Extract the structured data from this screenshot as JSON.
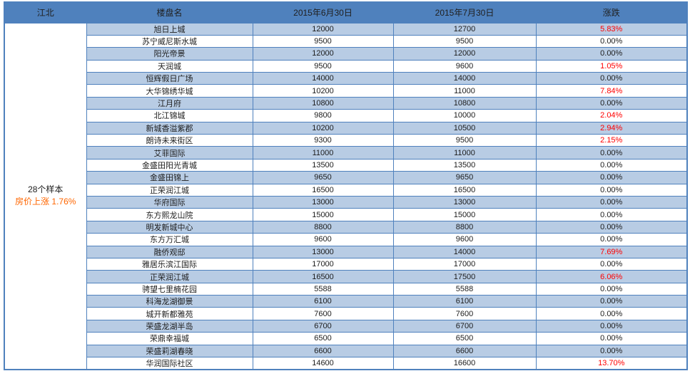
{
  "colors": {
    "header_bg": "#4f81bd",
    "band": "#b8cce4",
    "border": "#4f81bd",
    "up": "#ff0000",
    "accent": "#ff6600"
  },
  "table": {
    "region_label": "江北",
    "columns": [
      "楼盘名",
      "2015年6月30日",
      "2015年7月30日",
      "涨跌"
    ],
    "summary": {
      "sample_count": "28个样本",
      "change_line": "房价上涨 1.76%"
    },
    "rows": [
      {
        "name": "旭日上城",
        "jun": "12000",
        "jul": "12700",
        "change": "5.83%"
      },
      {
        "name": "苏宁威尼斯水城",
        "jun": "9500",
        "jul": "9500",
        "change": "0.00%"
      },
      {
        "name": "阳光帝景",
        "jun": "12000",
        "jul": "12000",
        "change": "0.00%"
      },
      {
        "name": "天润城",
        "jun": "9500",
        "jul": "9600",
        "change": "1.05%"
      },
      {
        "name": "恒辉假日广场",
        "jun": "14000",
        "jul": "14000",
        "change": "0.00%"
      },
      {
        "name": "大华锦绣华城",
        "jun": "10200",
        "jul": "11000",
        "change": "7.84%"
      },
      {
        "name": "江月府",
        "jun": "10800",
        "jul": "10800",
        "change": "0.00%"
      },
      {
        "name": "北江锦城",
        "jun": "9800",
        "jul": "10000",
        "change": "2.04%"
      },
      {
        "name": "新城香溢紫郡",
        "jun": "10200",
        "jul": "10500",
        "change": "2.94%"
      },
      {
        "name": "朗诗未来街区",
        "jun": "9300",
        "jul": "9500",
        "change": "2.15%"
      },
      {
        "name": "艾菲国际",
        "jun": "11000",
        "jul": "11000",
        "change": "0.00%"
      },
      {
        "name": "金盛田阳光青城",
        "jun": "13500",
        "jul": "13500",
        "change": "0.00%"
      },
      {
        "name": "金盛田锦上",
        "jun": "9650",
        "jul": "9650",
        "change": "0.00%"
      },
      {
        "name": "正荣润江城",
        "jun": "16500",
        "jul": "16500",
        "change": "0.00%"
      },
      {
        "name": "华府国际",
        "jun": "13000",
        "jul": "13000",
        "change": "0.00%"
      },
      {
        "name": "东方熙龙山院",
        "jun": "15000",
        "jul": "15000",
        "change": "0.00%"
      },
      {
        "name": "明发新城中心",
        "jun": "8800",
        "jul": "8800",
        "change": "0.00%"
      },
      {
        "name": "东方万汇城",
        "jun": "9600",
        "jul": "9600",
        "change": "0.00%"
      },
      {
        "name": "融侨观邸",
        "jun": "13000",
        "jul": "14000",
        "change": "7.69%"
      },
      {
        "name": "雅居乐滨江国际",
        "jun": "17000",
        "jul": "17000",
        "change": "0.00%"
      },
      {
        "name": "正荣润江城",
        "jun": "16500",
        "jul": "17500",
        "change": "6.06%"
      },
      {
        "name": "骋望七里楠花园",
        "jun": "5588",
        "jul": "5588",
        "change": "0.00%"
      },
      {
        "name": "科海龙湖御景",
        "jun": "6100",
        "jul": "6100",
        "change": "0.00%"
      },
      {
        "name": "城开新都雅苑",
        "jun": "7600",
        "jul": "7600",
        "change": "0.00%"
      },
      {
        "name": "荣盛龙湖半岛",
        "jun": "6700",
        "jul": "6700",
        "change": "0.00%"
      },
      {
        "name": "荣鼎幸福城",
        "jun": "6500",
        "jul": "6500",
        "change": "0.00%"
      },
      {
        "name": "荣盛莉湖春晓",
        "jun": "6600",
        "jul": "6600",
        "change": "0.00%"
      },
      {
        "name": "华润国际社区",
        "jun": "14600",
        "jul": "16600",
        "change": "13.70%"
      }
    ]
  }
}
